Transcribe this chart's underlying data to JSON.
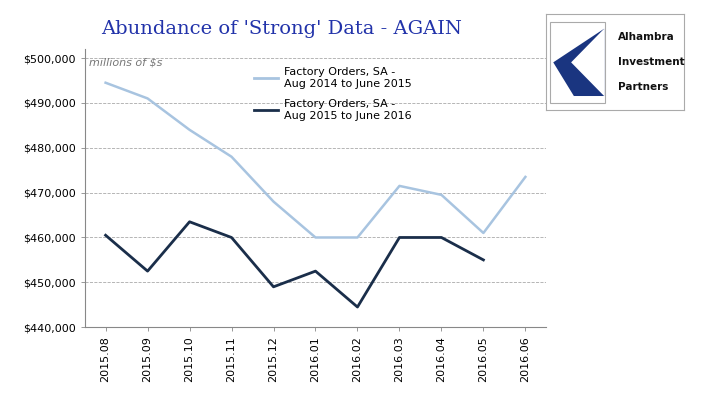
{
  "title": "Abundance of 'Strong' Data - AGAIN",
  "subtitle": "millions of $s",
  "x_labels": [
    "2015.08",
    "2015.09",
    "2015.10",
    "2015.11",
    "2015.12",
    "2016.01",
    "2016.02",
    "2016.03",
    "2016.04",
    "2016.05",
    "2016.06"
  ],
  "series1_label": "Factory Orders, SA -\nAug 2014 to June 2015",
  "series2_label": "Factory Orders, SA -\nAug 2015 to June 2016",
  "series1_values": [
    494500,
    491000,
    484000,
    478000,
    468000,
    460000,
    460000,
    471500,
    469500,
    461000,
    473500
  ],
  "series2_values": [
    460500,
    452500,
    463500,
    460000,
    449000,
    452500,
    444500,
    460000,
    460000,
    455000,
    null
  ],
  "series1_color": "#a8c4e0",
  "series2_color": "#1a2e4a",
  "background_color": "#ffffff",
  "plot_bg_color": "#ffffff",
  "grid_color": "#aaaaaa",
  "border_color": "#888888",
  "ylim_min": 440000,
  "ylim_max": 502000,
  "ytick_vals": [
    440000,
    450000,
    460000,
    470000,
    480000,
    490000,
    500000
  ],
  "title_color": "#2233aa",
  "title_fontsize": 14,
  "subtitle_fontsize": 8,
  "axis_fontsize": 8,
  "legend_fontsize": 8,
  "logo_text_line1": "Alhambra",
  "logo_text_line2": "Investment",
  "logo_text_line3": "Partners",
  "logo_text_color": "#111111"
}
